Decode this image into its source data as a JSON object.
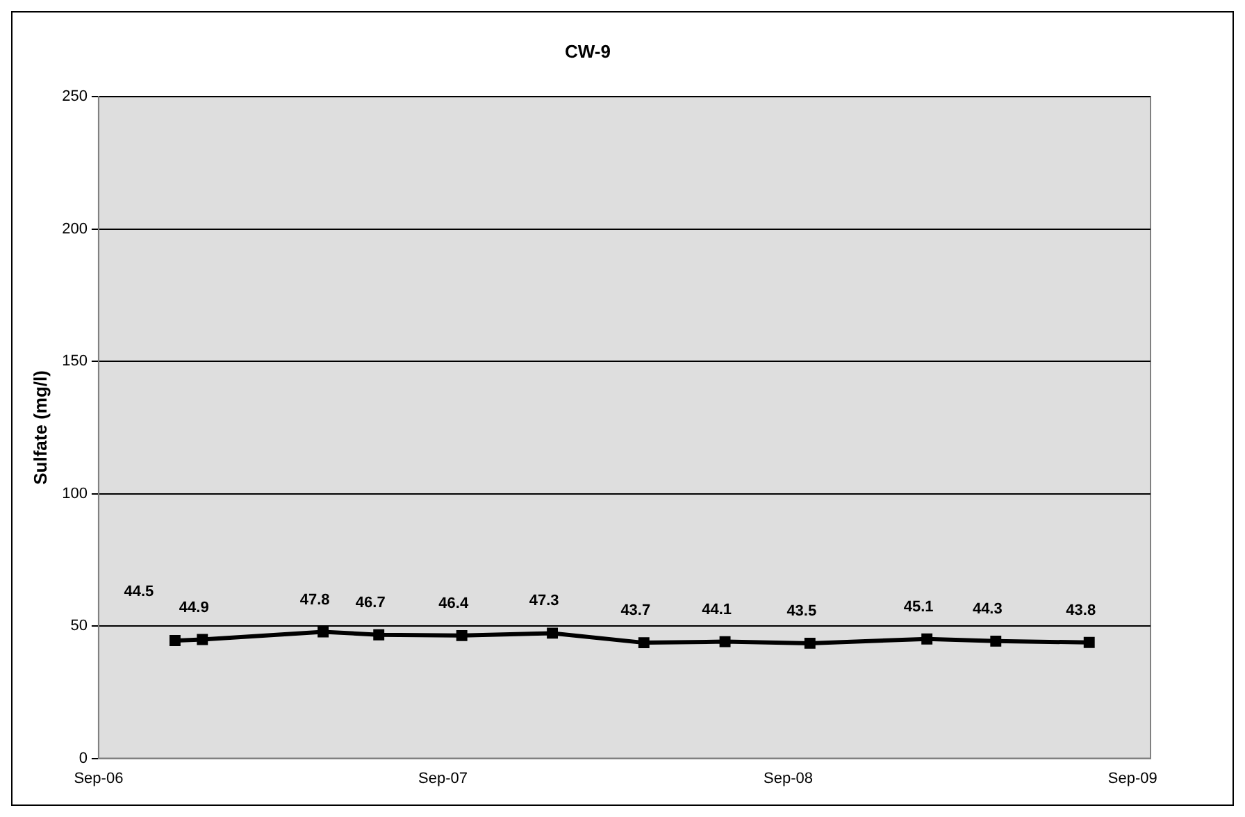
{
  "chart_data": {
    "type": "line",
    "title": "CW-9",
    "ylabel": "Sulfate (mg/l)",
    "x": [
      "2006-11-21",
      "2006-12-20",
      "2007-04-27",
      "2007-06-25",
      "2007-09-21",
      "2007-12-26",
      "2008-04-01",
      "2008-06-26",
      "2008-09-24",
      "2009-01-26",
      "2009-04-09",
      "2009-07-17"
    ],
    "series": [
      {
        "color": "#000000",
        "values": [
          44.5,
          44.9,
          47.8,
          46.7,
          46.4,
          47.3,
          43.7,
          44.1,
          43.5,
          45.1,
          44.3,
          43.8
        ]
      }
    ],
    "xlim": [
      "2006-09-01",
      "2009-09-20"
    ],
    "xticks": [
      {
        "value": "2006-09-01",
        "label": "Sep-06"
      },
      {
        "value": "2007-09-01",
        "label": "Sep-07"
      },
      {
        "value": "2008-09-01",
        "label": "Sep-08"
      },
      {
        "value": "2009-09-01",
        "label": "Sep-09"
      }
    ],
    "ylim": [
      0,
      250
    ],
    "yticks": [
      0,
      50,
      100,
      150,
      200,
      250
    ],
    "grid": "y",
    "legend": false,
    "marker": "square",
    "line_style": "solid",
    "data_labels": true
  }
}
